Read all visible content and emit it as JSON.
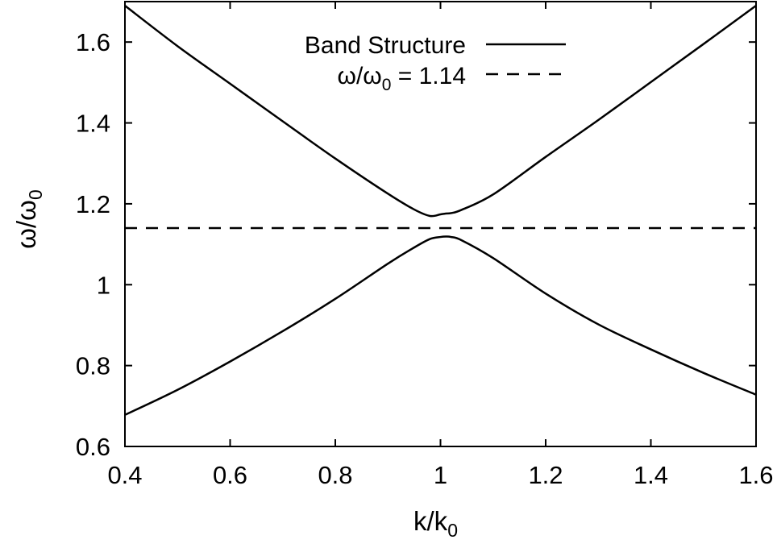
{
  "chart_data": {
    "type": "line",
    "xlabel": {
      "base": "k/k",
      "sub": "0"
    },
    "ylabel": {
      "base": "ω/ω",
      "sub": "0"
    },
    "xlim": [
      0.4,
      1.6
    ],
    "ylim": [
      0.6,
      1.7
    ],
    "xticks": [
      "0.4",
      "0.6",
      "0.8",
      "1",
      "1.2",
      "1.4",
      "1.6"
    ],
    "xtick_values": [
      0.4,
      0.6,
      0.8,
      1.0,
      1.2,
      1.4,
      1.6
    ],
    "yticks": [
      "0.6",
      "0.8",
      "1",
      "1.2",
      "1.4",
      "1.6"
    ],
    "ytick_values": [
      0.6,
      0.8,
      1.0,
      1.2,
      1.4,
      1.6
    ],
    "grid": false,
    "legend_position": "top-center",
    "series": [
      {
        "name": "Band Structure",
        "style": "solid",
        "color": "#000000",
        "branches": [
          {
            "x": [
              0.4,
              0.5,
              0.6,
              0.7,
              0.8,
              0.9,
              0.95,
              0.98,
              1.0,
              1.01,
              1.02,
              1.04,
              1.1,
              1.2,
              1.3,
              1.4,
              1.5,
              1.6
            ],
            "y": [
              1.69,
              1.59,
              1.497,
              1.404,
              1.312,
              1.225,
              1.186,
              1.17,
              1.174,
              1.176,
              1.177,
              1.185,
              1.223,
              1.316,
              1.407,
              1.501,
              1.595,
              1.69
            ]
          },
          {
            "x": [
              0.4,
              0.5,
              0.6,
              0.7,
              0.8,
              0.9,
              0.95,
              0.98,
              1.0,
              1.01,
              1.02,
              1.04,
              1.1,
              1.2,
              1.3,
              1.4,
              1.5,
              1.6
            ],
            "y": [
              0.678,
              0.74,
              0.81,
              0.885,
              0.965,
              1.052,
              1.092,
              1.113,
              1.118,
              1.119,
              1.118,
              1.11,
              1.066,
              0.978,
              0.902,
              0.84,
              0.782,
              0.728
            ]
          }
        ]
      },
      {
        "name": "ω/ω",
        "name_sub": "0",
        "name_suffix": " = 1.14",
        "style": "dashed",
        "color": "#000000",
        "x": [
          0.4,
          1.6
        ],
        "y": [
          1.14,
          1.14
        ]
      }
    ]
  }
}
